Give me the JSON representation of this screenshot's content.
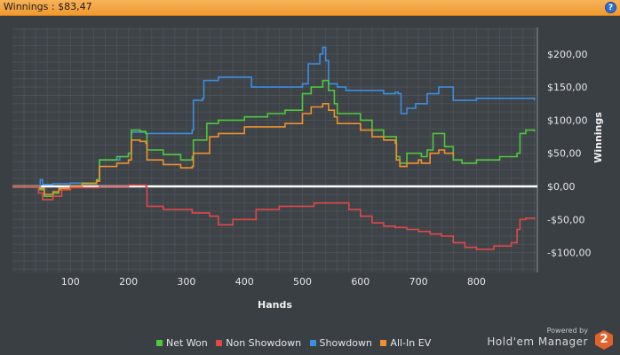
{
  "window": {
    "title": "Winnings : $83,47"
  },
  "chart_data": {
    "type": "line",
    "xlabel": "Hands",
    "ylabel": "Winnings",
    "xlim": [
      0,
      905
    ],
    "ylim": [
      -130,
      240
    ],
    "x_ticks": [
      100,
      200,
      300,
      400,
      500,
      600,
      700,
      800
    ],
    "y_ticks": [
      {
        "value": 200,
        "label": "$200,00"
      },
      {
        "value": 150,
        "label": "$150,00"
      },
      {
        "value": 100,
        "label": "$100,00"
      },
      {
        "value": 50,
        "label": "$50,00"
      },
      {
        "value": 0,
        "label": "$0,00"
      },
      {
        "value": -50,
        "label": "-$50,00"
      },
      {
        "value": -100,
        "label": "-$100,00"
      }
    ],
    "grid": true,
    "legend_position": "bottom",
    "series": [
      {
        "name": "Showdown",
        "color": "#3d8ee0",
        "points": [
          [
            0,
            0
          ],
          [
            30,
            0
          ],
          [
            40,
            0
          ],
          [
            48,
            10
          ],
          [
            52,
            3
          ],
          [
            70,
            4
          ],
          [
            100,
            5
          ],
          [
            145,
            8
          ],
          [
            150,
            40
          ],
          [
            185,
            45
          ],
          [
            200,
            50
          ],
          [
            205,
            82
          ],
          [
            225,
            82
          ],
          [
            230,
            80
          ],
          [
            300,
            80
          ],
          [
            310,
            85
          ],
          [
            312,
            130
          ],
          [
            328,
            133
          ],
          [
            330,
            160
          ],
          [
            355,
            165
          ],
          [
            400,
            165
          ],
          [
            412,
            150
          ],
          [
            500,
            155
          ],
          [
            510,
            185
          ],
          [
            525,
            185
          ],
          [
            530,
            200
          ],
          [
            535,
            210
          ],
          [
            540,
            190
          ],
          [
            545,
            155
          ],
          [
            560,
            150
          ],
          [
            575,
            145
          ],
          [
            625,
            145
          ],
          [
            640,
            140
          ],
          [
            655,
            140
          ],
          [
            660,
            142
          ],
          [
            665,
            140
          ],
          [
            670,
            110
          ],
          [
            680,
            118
          ],
          [
            695,
            125
          ],
          [
            710,
            125
          ],
          [
            715,
            140
          ],
          [
            730,
            140
          ],
          [
            735,
            150
          ],
          [
            755,
            150
          ],
          [
            760,
            130
          ],
          [
            800,
            133
          ],
          [
            900,
            130
          ]
        ]
      },
      {
        "name": "Net Won",
        "color": "#4ec93a",
        "points": [
          [
            0,
            0
          ],
          [
            30,
            0
          ],
          [
            45,
            -5
          ],
          [
            55,
            -15
          ],
          [
            70,
            -10
          ],
          [
            80,
            -5
          ],
          [
            100,
            0
          ],
          [
            120,
            5
          ],
          [
            145,
            10
          ],
          [
            150,
            40
          ],
          [
            180,
            45
          ],
          [
            200,
            50
          ],
          [
            205,
            85
          ],
          [
            220,
            83
          ],
          [
            230,
            80
          ],
          [
            232,
            55
          ],
          [
            260,
            48
          ],
          [
            290,
            40
          ],
          [
            310,
            45
          ],
          [
            312,
            70
          ],
          [
            335,
            95
          ],
          [
            355,
            100
          ],
          [
            400,
            105
          ],
          [
            440,
            110
          ],
          [
            470,
            115
          ],
          [
            500,
            140
          ],
          [
            515,
            150
          ],
          [
            535,
            160
          ],
          [
            545,
            145
          ],
          [
            555,
            125
          ],
          [
            560,
            110
          ],
          [
            580,
            110
          ],
          [
            600,
            100
          ],
          [
            620,
            85
          ],
          [
            640,
            75
          ],
          [
            660,
            75
          ],
          [
            662,
            45
          ],
          [
            668,
            35
          ],
          [
            680,
            50
          ],
          [
            700,
            50
          ],
          [
            705,
            45
          ],
          [
            715,
            55
          ],
          [
            725,
            80
          ],
          [
            735,
            80
          ],
          [
            745,
            60
          ],
          [
            760,
            40
          ],
          [
            775,
            35
          ],
          [
            800,
            40
          ],
          [
            840,
            45
          ],
          [
            870,
            50
          ],
          [
            875,
            80
          ],
          [
            885,
            85
          ],
          [
            900,
            83
          ]
        ]
      },
      {
        "name": "All-In EV",
        "color": "#f0902e",
        "points": [
          [
            0,
            0
          ],
          [
            30,
            0
          ],
          [
            45,
            -3
          ],
          [
            55,
            -12
          ],
          [
            70,
            -8
          ],
          [
            80,
            -3
          ],
          [
            100,
            0
          ],
          [
            120,
            4
          ],
          [
            145,
            8
          ],
          [
            150,
            30
          ],
          [
            180,
            35
          ],
          [
            200,
            40
          ],
          [
            205,
            70
          ],
          [
            220,
            68
          ],
          [
            230,
            65
          ],
          [
            232,
            40
          ],
          [
            260,
            33
          ],
          [
            290,
            28
          ],
          [
            310,
            30
          ],
          [
            312,
            50
          ],
          [
            340,
            75
          ],
          [
            355,
            80
          ],
          [
            400,
            90
          ],
          [
            440,
            90
          ],
          [
            470,
            95
          ],
          [
            500,
            110
          ],
          [
            515,
            120
          ],
          [
            535,
            125
          ],
          [
            545,
            115
          ],
          [
            555,
            105
          ],
          [
            560,
            95
          ],
          [
            580,
            95
          ],
          [
            600,
            85
          ],
          [
            620,
            75
          ],
          [
            640,
            70
          ],
          [
            660,
            65
          ],
          [
            662,
            40
          ],
          [
            668,
            30
          ],
          [
            680,
            35
          ],
          [
            700,
            40
          ],
          [
            705,
            35
          ],
          [
            720,
            50
          ],
          [
            735,
            55
          ],
          [
            745,
            50
          ],
          [
            760,
            45
          ]
        ]
      },
      {
        "name": "Non Showdown",
        "color": "#e04848",
        "points": [
          [
            0,
            0
          ],
          [
            30,
            0
          ],
          [
            45,
            -10
          ],
          [
            52,
            -20
          ],
          [
            70,
            -15
          ],
          [
            85,
            -5
          ],
          [
            100,
            -2
          ],
          [
            150,
            0
          ],
          [
            200,
            2
          ],
          [
            230,
            0
          ],
          [
            232,
            -30
          ],
          [
            260,
            -35
          ],
          [
            300,
            -35
          ],
          [
            310,
            -40
          ],
          [
            340,
            -45
          ],
          [
            355,
            -58
          ],
          [
            380,
            -50
          ],
          [
            420,
            -35
          ],
          [
            460,
            -30
          ],
          [
            500,
            -30
          ],
          [
            520,
            -25
          ],
          [
            560,
            -25
          ],
          [
            580,
            -35
          ],
          [
            600,
            -45
          ],
          [
            620,
            -55
          ],
          [
            640,
            -60
          ],
          [
            660,
            -62
          ],
          [
            680,
            -65
          ],
          [
            700,
            -68
          ],
          [
            720,
            -72
          ],
          [
            740,
            -75
          ],
          [
            760,
            -85
          ],
          [
            780,
            -92
          ],
          [
            800,
            -95
          ],
          [
            830,
            -90
          ],
          [
            860,
            -85
          ],
          [
            870,
            -65
          ],
          [
            875,
            -50
          ],
          [
            885,
            -48
          ],
          [
            900,
            -50
          ]
        ]
      }
    ]
  },
  "legend": {
    "items": [
      {
        "label": "Net Won",
        "color": "#4ec93a"
      },
      {
        "label": "Non Showdown",
        "color": "#e04848"
      },
      {
        "label": "Showdown",
        "color": "#3d8ee0"
      },
      {
        "label": "All-In EV",
        "color": "#f0902e"
      }
    ]
  },
  "branding": {
    "powered_by": "Powered by",
    "product": "Hold'em Manager",
    "logo_text": "2"
  },
  "icons": {
    "help": "help-icon"
  }
}
